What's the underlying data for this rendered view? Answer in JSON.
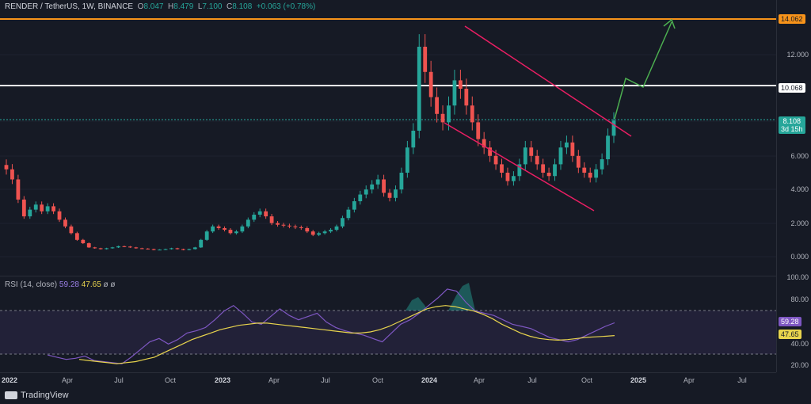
{
  "legend": {
    "symbol": "RENDER / TetherUS, 1W, BINANCE",
    "o_label": "O",
    "o": "8.047",
    "h_label": "H",
    "h": "8.479",
    "l_label": "L",
    "l": "7.100",
    "c_label": "C",
    "c": "8.108",
    "change": "+0.063 (+0.78%)"
  },
  "rsi_legend": {
    "label": "RSI (14, close)",
    "rsi": "59.28",
    "ma": "47.65",
    "extra": "ø ø"
  },
  "price_scale": {
    "ticks": [
      "12.000",
      "6.000",
      "4.000",
      "2.000",
      "0.000"
    ],
    "level_top": "14.062",
    "level_resistance": "10.068",
    "last_price": "8.108",
    "countdown": "3d 15h"
  },
  "rsi_scale": {
    "ticks": [
      "100.00",
      "80.00",
      "40.00",
      "20.00"
    ],
    "rsi_tag": "59.28",
    "ma_tag": "47.65"
  },
  "time_axis": [
    "2022",
    "Apr",
    "Jul",
    "Oct",
    "2023",
    "Apr",
    "Jul",
    "Oct",
    "2024",
    "Apr",
    "Jul",
    "Oct",
    "2025",
    "Apr",
    "Jul"
  ],
  "brand": {
    "name": "TradingView"
  },
  "colors": {
    "bull": "#26a69a",
    "bear": "#ef5350",
    "resistance_top": "#f7931a",
    "resistance_mid": "#ffffff",
    "channel": "#e91e63",
    "projection": "#4caf50",
    "rsi_line": "#7e57c2",
    "rsi_ma": "#e8d44d"
  },
  "chart_data": {
    "type": "candlestick",
    "interval": "1W",
    "ylim": [
      0,
      14.6
    ],
    "close_series": [
      5.2,
      4.6,
      3.4,
      2.4,
      2.8,
      3.1,
      2.7,
      3.0,
      2.7,
      2.2,
      1.8,
      1.4,
      1.0,
      0.8,
      0.55,
      0.5,
      0.45,
      0.5,
      0.55,
      0.62,
      0.6,
      0.55,
      0.5,
      0.48,
      0.45,
      0.4,
      0.42,
      0.45,
      0.5,
      0.45,
      0.4,
      0.45,
      0.55,
      1.0,
      1.5,
      1.8,
      1.7,
      1.6,
      1.4,
      1.5,
      1.8,
      2.2,
      2.5,
      2.7,
      2.4,
      2.0,
      1.9,
      1.85,
      1.8,
      1.75,
      1.7,
      1.5,
      1.3,
      1.4,
      1.5,
      1.6,
      1.8,
      2.3,
      2.8,
      3.3,
      3.7,
      4.0,
      4.3,
      4.6,
      3.8,
      3.5,
      4.0,
      5.0,
      6.5,
      7.5,
      12.5,
      11.0,
      9.5,
      8.5,
      8.0,
      9.0,
      10.5,
      10.0,
      9.0,
      8.0,
      7.0,
      6.5,
      6.0,
      5.5,
      5.0,
      4.5,
      4.8,
      5.5,
      6.5,
      6.0,
      5.5,
      5.0,
      4.8,
      5.5,
      6.5,
      6.8,
      6.0,
      5.3,
      5.0,
      4.7,
      5.2,
      5.8,
      7.2,
      8.108
    ],
    "horizontal_levels": [
      14.062,
      10.068
    ],
    "channel_upper": {
      "from": [
        "2024-02",
        13.6
      ],
      "to": [
        "2024-12",
        7.0
      ]
    },
    "channel_lower": {
      "from": [
        "2024-01",
        7.8
      ],
      "to": [
        "2024-11",
        2.7
      ]
    },
    "projection_path": [
      [
        8.1,
        "2024-11"
      ],
      [
        10.5,
        "2024-12"
      ],
      [
        10.2,
        "2025-01"
      ],
      [
        14.0,
        "2025-03"
      ]
    ],
    "rsi_series": [
      30,
      28,
      26,
      27,
      29,
      25,
      24,
      23,
      22,
      28,
      35,
      42,
      45,
      40,
      44,
      50,
      52,
      55,
      62,
      70,
      75,
      68,
      60,
      58,
      65,
      72,
      66,
      62,
      65,
      68,
      60,
      55,
      52,
      50,
      48,
      45,
      42,
      50,
      58,
      62,
      68,
      75,
      82,
      90,
      88,
      78,
      70,
      68,
      66,
      62,
      58,
      56,
      54,
      50,
      46,
      44,
      42,
      44,
      48,
      52,
      56,
      59.28
    ],
    "rsi_ma_series": [
      26,
      25,
      24,
      23,
      22,
      23,
      24,
      26,
      28,
      32,
      36,
      40,
      44,
      47,
      50,
      53,
      55,
      57,
      58,
      59,
      59,
      58,
      57,
      56,
      55,
      54,
      53,
      52,
      51,
      50,
      50,
      51,
      53,
      56,
      60,
      64,
      68,
      72,
      74,
      75,
      74,
      72,
      70,
      67,
      63,
      58,
      54,
      50,
      47,
      45,
      44,
      43.5,
      44,
      45,
      46,
      46.5,
      47,
      47.65
    ],
    "rsi_bands": [
      30,
      70
    ]
  }
}
